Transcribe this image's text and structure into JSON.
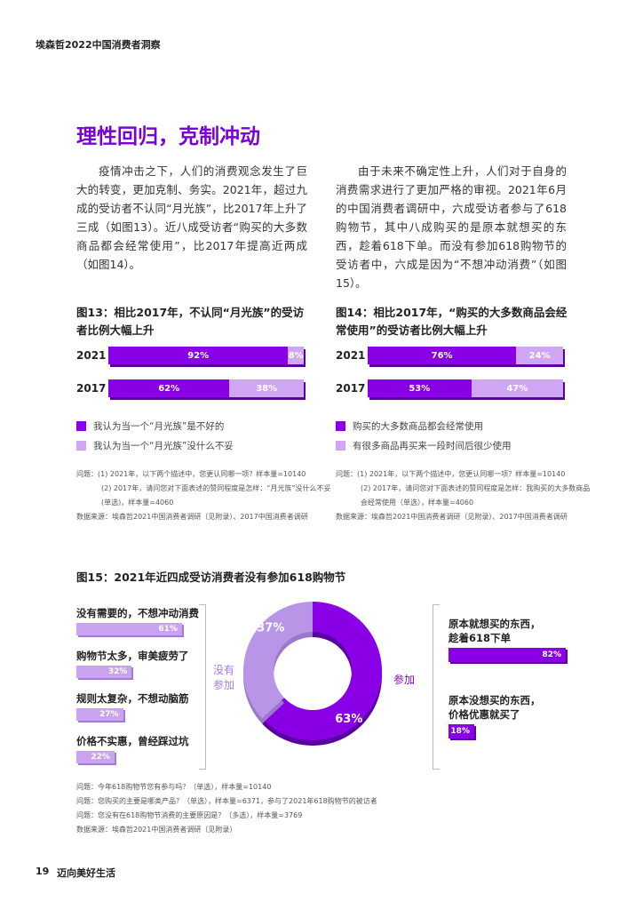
{
  "header": {
    "title": "埃森哲2022中国消费者洞察"
  },
  "section_title": "理性回归，克制冲动",
  "paragraphs": [
    "疫情冲击之下，人们的消费观念发生了巨大的转变，更加克制、务实。2021年，超过九成的受访者不认同“月光族”，比2017年上升了三成（如图13）。近八成受访者“购买的大多数商品都会经常使用”，比2017年提高近两成（如图14）。",
    "由于未来不确定性上升，人们对于自身的消费需求进行了更加严格的审视。2021年6月的中国消费者调研中，六成受访者参与了618购物节，其中八成购买的是原本就想买的东西，趁着618下单。而没有参加618购物节的受访者中，六成是因为“不想冲动消费”（如图15）。"
  ],
  "colors": {
    "accent": "#8a00e6",
    "light": "#cfa6f3",
    "title": "#7a00d6"
  },
  "fig13": {
    "title": "图13：相比2017年，不认同“月光族”的受访者比例大幅上升",
    "rows": [
      {
        "year": "2021",
        "a": 92,
        "b": 8,
        "a_label": "92%",
        "b_label": "8%"
      },
      {
        "year": "2017",
        "a": 62,
        "b": 38,
        "a_label": "62%",
        "b_label": "38%"
      }
    ],
    "legend": [
      "我认为当一个“月光族”是不好的",
      "我认为当一个“月光族”没什么不妥"
    ],
    "notes": [
      "问题：(1) 2021年，以下两个描述中，您更认同哪一项？样本量=10140",
      "(2) 2017年，请问您对下面表述的赞同程度是怎样：“月光族”没什么不妥",
      "(单选)，样本量=4060",
      "数据来源：埃森哲2021中国消费者调研（见附录）、2017中国消费者调研"
    ]
  },
  "fig14": {
    "title": "图14：相比2017年，“购买的大多数商品会经常使用”的受访者比例大幅上升",
    "rows": [
      {
        "year": "2021",
        "a": 76,
        "b": 24,
        "a_label": "76%",
        "b_label": "24%"
      },
      {
        "year": "2017",
        "a": 53,
        "b": 47,
        "a_label": "53%",
        "b_label": "47%"
      }
    ],
    "legend": [
      "购买的大多数商品都会经常使用",
      "有很多商品再买来一段时间后很少使用"
    ],
    "notes": [
      "问题：(1) 2021年，以下两个描述中，您更认同哪一项？样本量=10140",
      "(2) 2017年，请问您对下面表述的赞同程度是怎样：我购买的大多数商品",
      "会经常使用（单选），样本量=4060",
      "数据来源：埃森哲2021中国消费者调研（见附录）、2017中国消费者调研"
    ]
  },
  "fig15": {
    "title": "图15：2021年近四成受访消费者没有参加618购物节",
    "not_participated_label": "没有参加",
    "participated_label": "参加",
    "donut": [
      {
        "label": "参加",
        "value": 63,
        "text": "63%"
      },
      {
        "label": "没有参加",
        "value": 37,
        "text": "37%"
      }
    ],
    "left": [
      {
        "label": "没有需要的，不想冲动消费",
        "value": 61,
        "text": "61%"
      },
      {
        "label": "购物节太多，审美疲劳了",
        "value": 32,
        "text": "32%"
      },
      {
        "label": "规则太复杂，不想动脑筋",
        "value": 27,
        "text": "27%"
      },
      {
        "label": "价格不实惠，曾经踩过坑",
        "value": 22,
        "text": "22%"
      }
    ],
    "right": [
      {
        "label1": "原本就想买的东西，",
        "label2": "趁着618下单",
        "value": 82,
        "text": "82%"
      },
      {
        "label1": "原本没想买的东西，",
        "label2": "价格优惠就买了",
        "value": 18,
        "text": "18%"
      }
    ],
    "notes": [
      "问题：今年618购物节您有参与吗？（单选），样本量=10140",
      "问题：您购买的主要是哪类产品？（单选），样本量=6371，参与了2021年618购物节的被访者",
      "问题：您没有在618购物节消费的主要原因是？（多选），样本量=3769",
      "数据来源：埃森哲2021中国消费者调研（见附录）"
    ]
  },
  "footer": {
    "page": "19",
    "title": "迈向美好生活"
  }
}
